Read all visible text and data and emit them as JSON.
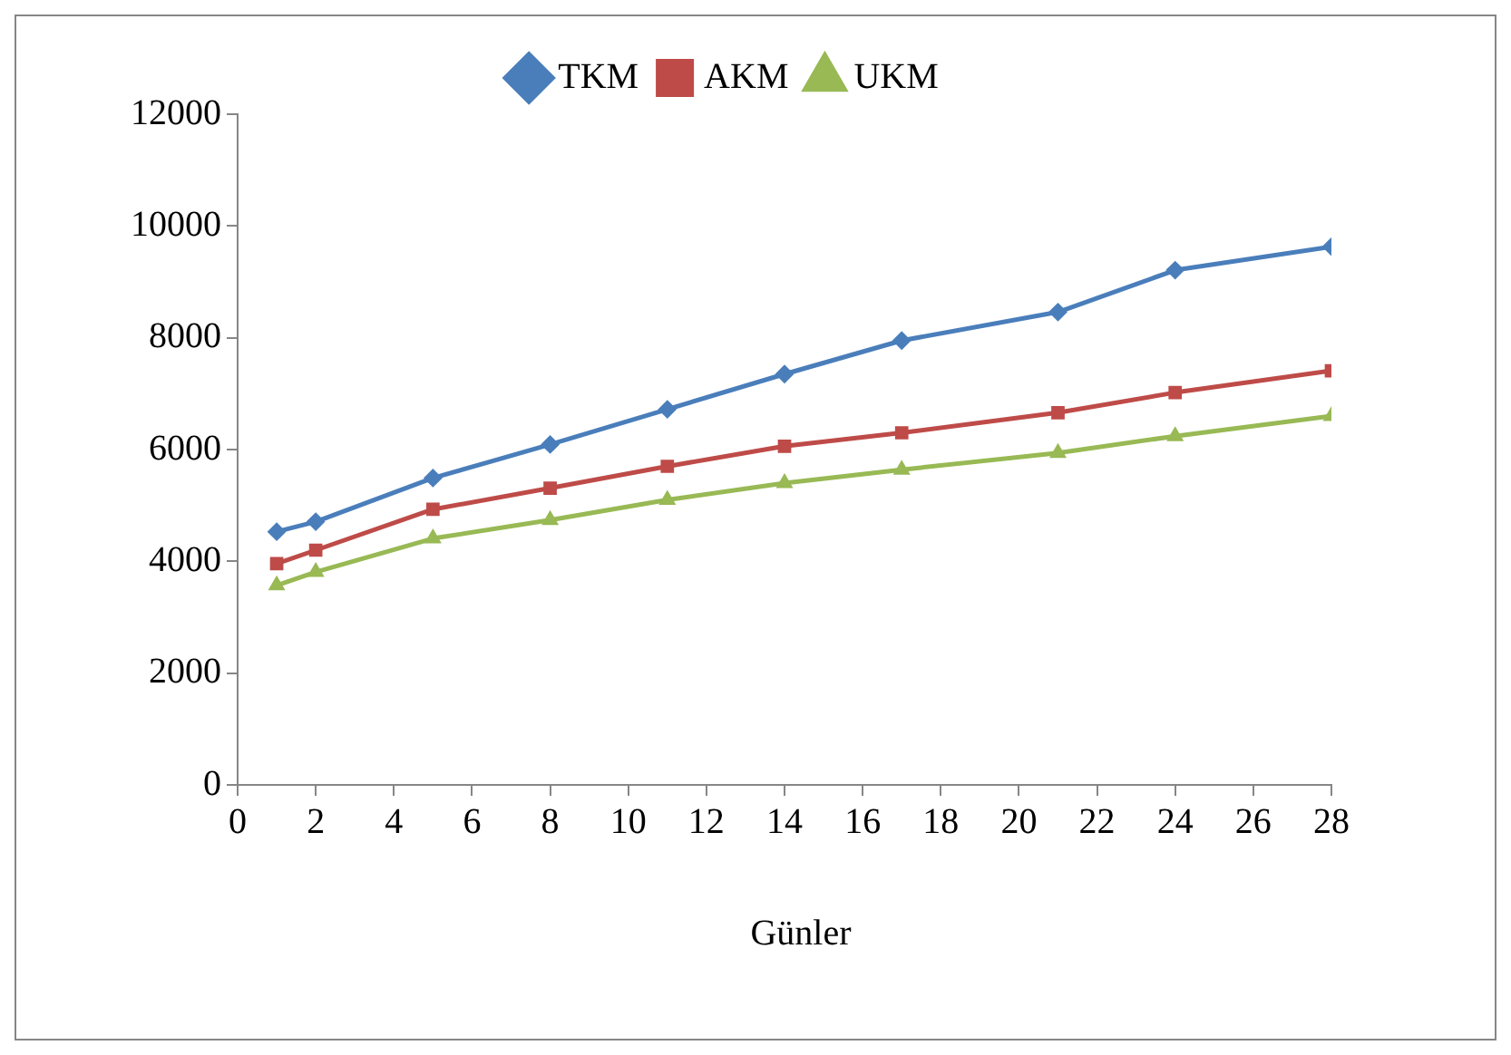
{
  "chart_data": {
    "type": "line",
    "xlabel": "Günler",
    "x": [
      1,
      2,
      5,
      8,
      11,
      14,
      17,
      21,
      24,
      28
    ],
    "xlim": [
      0,
      28
    ],
    "xticks": [
      0,
      2,
      4,
      6,
      8,
      10,
      12,
      14,
      16,
      18,
      20,
      22,
      24,
      26,
      28
    ],
    "ylim": [
      0,
      12000
    ],
    "yticks": [
      0,
      2000,
      4000,
      6000,
      8000,
      10000,
      12000
    ],
    "grid": false,
    "legend": "top",
    "line_style": "solid",
    "series": [
      {
        "name": "TKM",
        "color": "#4a7ebb",
        "marker": "diamond",
        "values": [
          4530,
          4710,
          5490,
          6090,
          6720,
          7350,
          7950,
          8460,
          9210,
          9630
        ]
      },
      {
        "name": "AKM",
        "color": "#be4b48",
        "marker": "square",
        "values": [
          3960,
          4200,
          4930,
          5310,
          5700,
          6060,
          6300,
          6660,
          7020,
          7410
        ]
      },
      {
        "name": "UKM",
        "color": "#98b954",
        "marker": "triangle",
        "values": [
          3570,
          3810,
          4410,
          4740,
          5100,
          5400,
          5640,
          5940,
          6240,
          6600
        ]
      }
    ]
  }
}
